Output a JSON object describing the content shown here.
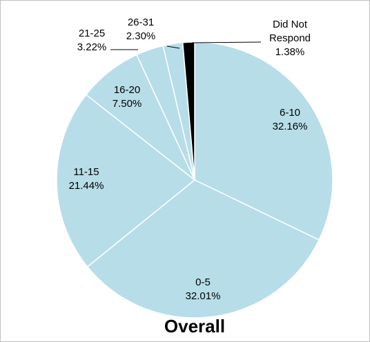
{
  "chart_data": {
    "type": "pie",
    "title": "Overall",
    "slices": [
      {
        "label": "6-10",
        "value": 32.16,
        "value_label": "32.16%",
        "color": "#b7dde8"
      },
      {
        "label": "0-5",
        "value": 32.01,
        "value_label": "32.01%",
        "color": "#b7dde8"
      },
      {
        "label": "11-15",
        "value": 21.44,
        "value_label": "21.44%",
        "color": "#b7dde8"
      },
      {
        "label": "16-20",
        "value": 7.5,
        "value_label": "7.50%",
        "color": "#b7dde8"
      },
      {
        "label": "21-25",
        "value": 3.22,
        "value_label": "3.22%",
        "color": "#b7dde8"
      },
      {
        "label": "26-31",
        "value": 2.3,
        "value_label": "2.30%",
        "color": "#b7dde8"
      },
      {
        "label": "Did Not Respond",
        "value": 1.38,
        "value_label": "1.38%",
        "color": "#000000"
      }
    ],
    "slice_border_color": "#ffffff",
    "start_angle": "12 o'clock",
    "direction": "clockwise"
  }
}
